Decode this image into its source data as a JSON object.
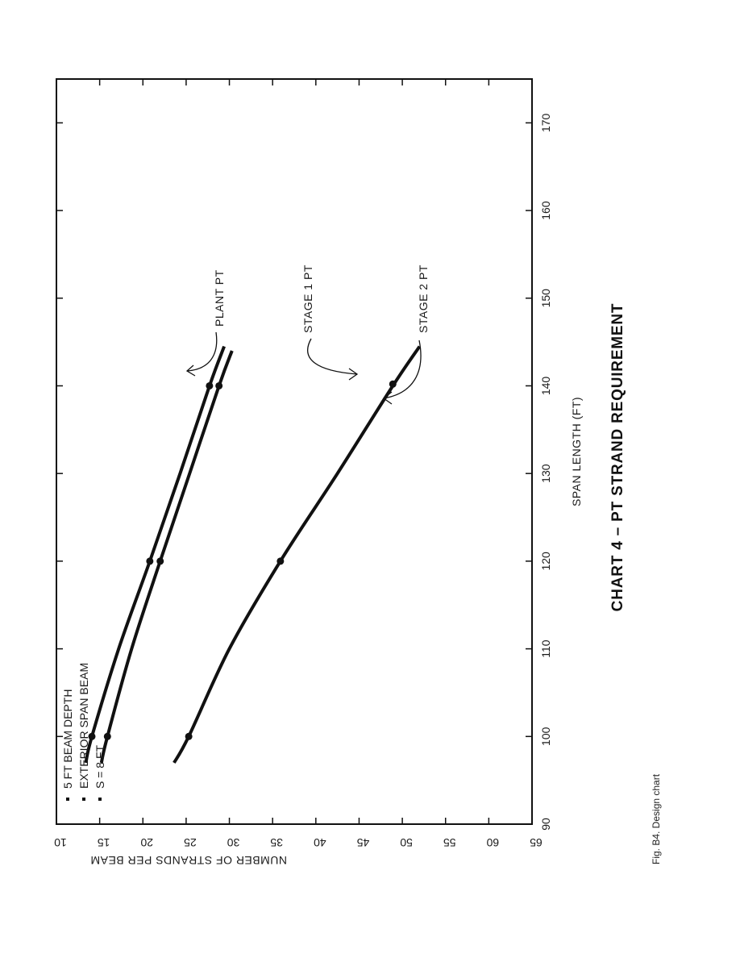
{
  "chart_data": {
    "type": "line",
    "title": "CHART 4 – PT STRAND REQUIREMENT",
    "xlabel": "SPAN LENGTH (FT)",
    "ylabel": "NUMBER OF STRANDS PER BEAM",
    "xlim": [
      90,
      175
    ],
    "ylim": [
      10,
      65
    ],
    "x_ticks": [
      "90",
      "100",
      "110",
      "120",
      "130",
      "140",
      "150",
      "160",
      "170"
    ],
    "y_ticks": [
      "10",
      "15",
      "20",
      "25",
      "30",
      "35",
      "40",
      "45",
      "50",
      "55",
      "60",
      "65"
    ],
    "legend": [
      "5 FT BEAM DEPTH",
      "EXTERIOR SPAN BEAM",
      "S = 8 FT"
    ],
    "legend_position": "top-left",
    "series": [
      {
        "name": "PLANT PT",
        "x": [
          97,
          100,
          110,
          120,
          130,
          140,
          144.5
        ],
        "values": [
          23.6,
          25.3,
          30.0,
          35.9,
          42.5,
          48.9,
          52.0
        ],
        "markers": [
          [
            100,
            25.3
          ],
          [
            120,
            35.9
          ],
          [
            140.2,
            48.9
          ]
        ]
      },
      {
        "name": "STAGE 1 PT",
        "x": [
          97,
          100,
          110,
          120,
          130,
          140,
          144
        ],
        "values": [
          15.2,
          15.9,
          18.7,
          22.0,
          25.4,
          28.8,
          30.3
        ],
        "markers": [
          [
            100,
            15.9
          ],
          [
            120,
            22.0
          ],
          [
            140,
            28.8
          ]
        ]
      },
      {
        "name": "STAGE 2 PT",
        "x": [
          97,
          100,
          110,
          120,
          130,
          140,
          144.5
        ],
        "values": [
          13.4,
          14.1,
          17.2,
          20.8,
          24.3,
          27.7,
          29.4
        ],
        "markers": [
          [
            100,
            14.1
          ],
          [
            120,
            20.8
          ],
          [
            140,
            27.7
          ]
        ]
      }
    ]
  },
  "caption": "Fig. B4. Design chart",
  "annotations": {
    "plant": "PLANT PT",
    "stage1": "STAGE 1 PT",
    "stage2": "STAGE 2 PT"
  }
}
